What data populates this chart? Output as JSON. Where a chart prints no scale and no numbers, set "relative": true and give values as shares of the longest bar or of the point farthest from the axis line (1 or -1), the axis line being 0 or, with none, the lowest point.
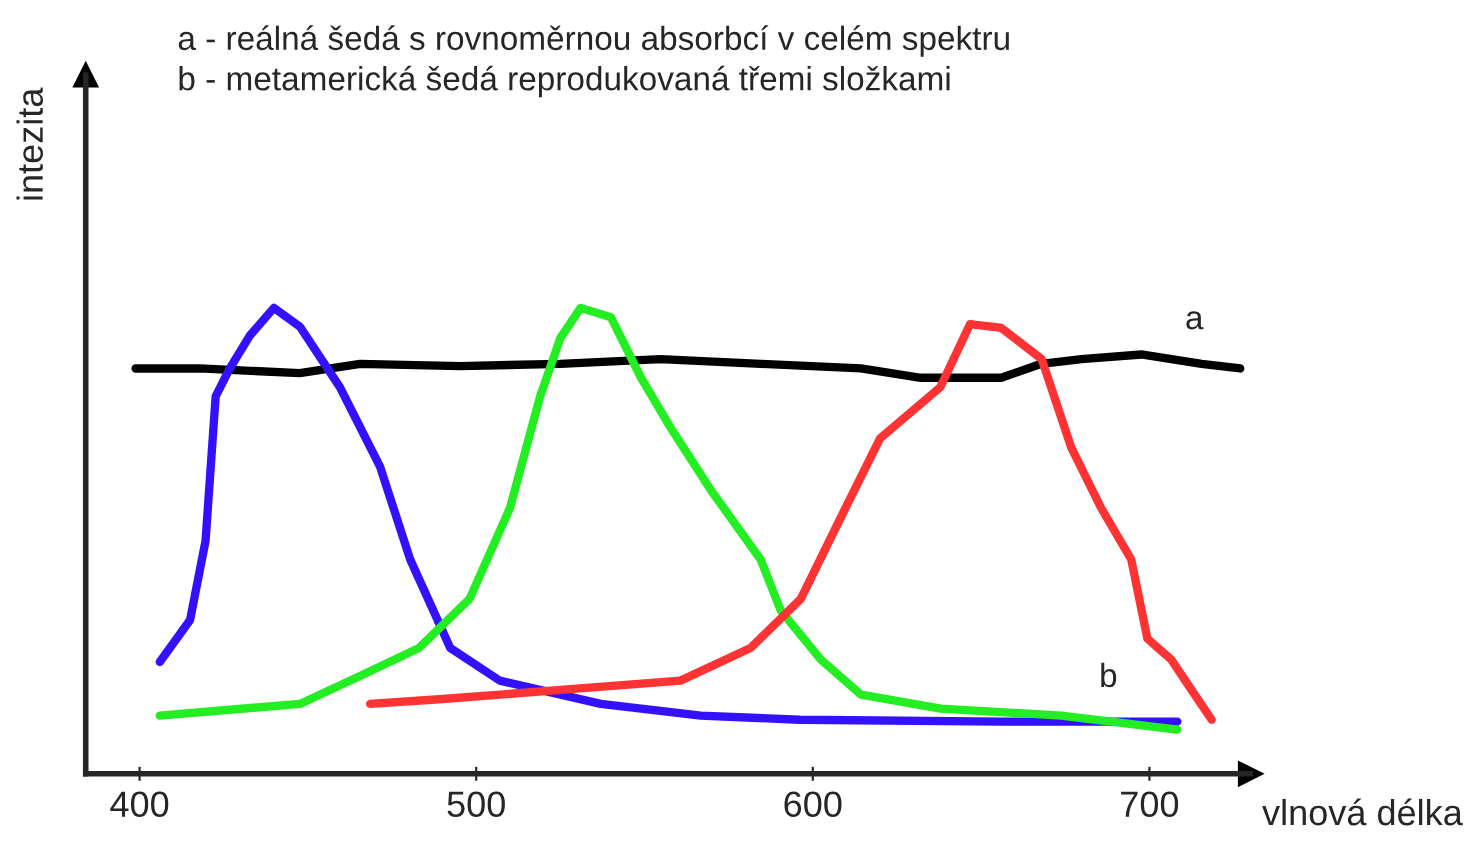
{
  "chart_data": {
    "type": "line",
    "relative": true,
    "xlabel": "vlnová délka",
    "ylabel": "intezita",
    "xlim": [
      384,
      730
    ],
    "xticks": [
      400,
      500,
      600,
      700
    ],
    "tick_labels": "x",
    "grid": false,
    "legend": false,
    "marker": "none",
    "line_style": "solid",
    "annotations": [
      "a - reálná šedá s rovnoměrnou absorbcí v celém spektru",
      "b - metamerická šedá reprodukovaná třemi složkami",
      {
        "text": "a",
        "x": 715.5,
        "y": 0.88
      },
      {
        "text": "b",
        "x": 690,
        "y": 0.112
      }
    ],
    "series": [
      {
        "color": "#000000",
        "x": [
          398.8,
          417.9,
          447.6,
          465.5,
          495.2,
          525,
          554.8,
          584.5,
          614.3,
          632.1,
          656,
          667.9,
          679.8,
          697.6,
          715.5,
          727
        ],
        "values": [
          0.87,
          0.87,
          0.86,
          0.88,
          0.875,
          0.88,
          0.89,
          0.88,
          0.87,
          0.85,
          0.85,
          0.88,
          0.89,
          0.9,
          0.88,
          0.87
        ]
      },
      {
        "color": "#3311ff",
        "x": [
          406,
          415,
          419.6,
          422.6,
          426.8,
          432.7,
          439.9,
          447.6,
          459.5,
          471.4,
          480.4,
          492.3,
          507,
          537,
          566.7,
          596,
          656,
          708.3
        ],
        "values": [
          0.24,
          0.33,
          0.5,
          0.81,
          0.87,
          0.94,
          1.0,
          0.96,
          0.83,
          0.66,
          0.46,
          0.27,
          0.2,
          0.15,
          0.125,
          0.116,
          0.112,
          0.112
        ]
      },
      {
        "color": "#22ee22",
        "x": [
          406,
          447.6,
          465.5,
          483,
          498,
          510,
          519,
          525,
          531,
          540,
          549,
          558,
          569.6,
          584.5,
          590.5,
          602.4,
          614.3,
          638,
          673.8,
          708.3
        ],
        "values": [
          0.125,
          0.15,
          0.21,
          0.27,
          0.375,
          0.57,
          0.81,
          0.935,
          1.0,
          0.98,
          0.85,
          0.74,
          0.61,
          0.46,
          0.35,
          0.245,
          0.17,
          0.14,
          0.125,
          0.095
        ]
      },
      {
        "color": "#ff3333",
        "x": [
          468.5,
          489,
          525,
          560.7,
          581.5,
          596.4,
          608.3,
          620,
          637.9,
          646.7,
          656,
          668,
          676.8,
          685.7,
          694.6,
          699.4,
          706.5,
          712.5,
          718.5
        ],
        "values": [
          0.15,
          0.16,
          0.18,
          0.2,
          0.27,
          0.375,
          0.55,
          0.72,
          0.83,
          0.965,
          0.957,
          0.89,
          0.7,
          0.57,
          0.46,
          0.29,
          0.245,
          0.18,
          0.116
        ]
      }
    ]
  }
}
